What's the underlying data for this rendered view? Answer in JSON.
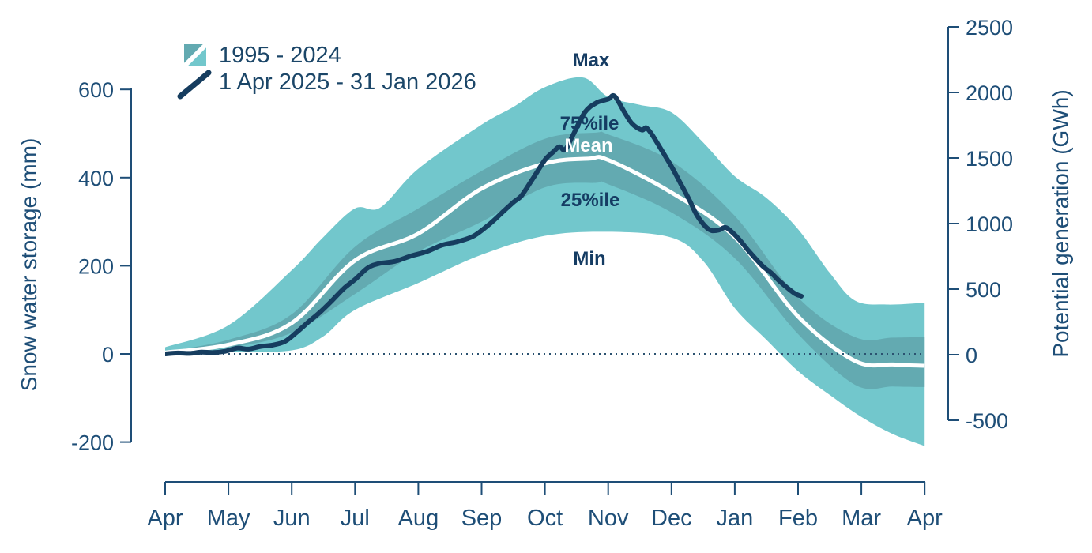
{
  "page": {
    "background": "#ffffff"
  },
  "figure": {
    "left_axis": {
      "title": "Snow water storage (mm)",
      "ticks": [
        600,
        400,
        200,
        0,
        -200
      ]
    },
    "right_axis": {
      "title": "Potential generation (GWh)",
      "ticks": [
        2500,
        2000,
        1500,
        1000,
        500,
        0,
        -500
      ]
    },
    "x_axis": {
      "months": [
        "Apr",
        "May",
        "Jun",
        "Jul",
        "Aug",
        "Sep",
        "Oct",
        "Nov",
        "Dec",
        "Jan",
        "Feb",
        "Mar",
        "Apr"
      ]
    }
  },
  "legend": {
    "band": {
      "label": "1995 - 2024"
    },
    "line": {
      "label": "1 Apr 2025 - 31 Jan 2026"
    }
  },
  "annotations": {
    "max": {
      "label": "Max"
    },
    "p75": {
      "label": "75%ile"
    },
    "mean": {
      "label": "Mean"
    },
    "p25": {
      "label": "25%ile"
    },
    "min": {
      "label": "Min"
    }
  },
  "colors": {
    "band_outer": "#72c7cc",
    "band_inner": "#63aab1",
    "mean_line": "#ffffff",
    "current_line": "#163d5f",
    "axis": "#1e4e77",
    "zero_dotted": "#2b5270"
  },
  "chart_data": {
    "type": "area+line",
    "title": "",
    "xlabel": "",
    "left_ylabel": "Snow water storage (mm)",
    "right_ylabel": "Potential generation (GWh)",
    "left_ylim": [
      -200,
      600
    ],
    "right_ylim": [
      -500,
      2500
    ],
    "grid": false,
    "legend_position": "top-left",
    "x_unit": "months since 1 Apr (0 = Apr, 12 = following Apr)",
    "y_unit": "mm snow water storage (right axis GWh is a linear rescale, ~3.37 GWh per mm)",
    "series": {
      "max": [
        [
          0,
          15
        ],
        [
          1,
          65
        ],
        [
          2,
          190
        ],
        [
          2.5,
          265
        ],
        [
          3,
          330
        ],
        [
          3.4,
          332
        ],
        [
          4,
          420
        ],
        [
          5,
          520
        ],
        [
          5.5,
          560
        ],
        [
          6,
          605
        ],
        [
          6.6,
          627
        ],
        [
          7,
          583
        ],
        [
          7.5,
          565
        ],
        [
          8,
          548
        ],
        [
          8.5,
          480
        ],
        [
          9,
          403
        ],
        [
          9.5,
          354
        ],
        [
          10,
          283
        ],
        [
          10.5,
          184
        ],
        [
          10.9,
          121
        ],
        [
          11.4,
          112
        ],
        [
          12,
          116
        ]
      ],
      "p75": [
        [
          0,
          5
        ],
        [
          1,
          32
        ],
        [
          2,
          90
        ],
        [
          3,
          243
        ],
        [
          4,
          330
        ],
        [
          5,
          415
        ],
        [
          6,
          488
        ],
        [
          6.8,
          502
        ],
        [
          7,
          498
        ],
        [
          8,
          437
        ],
        [
          9,
          313
        ],
        [
          10,
          128
        ],
        [
          10.9,
          38
        ],
        [
          11.5,
          37
        ],
        [
          12,
          39
        ]
      ],
      "mean": [
        [
          0,
          3
        ],
        [
          1,
          21
        ],
        [
          2,
          70
        ],
        [
          3,
          212
        ],
        [
          4,
          273
        ],
        [
          5,
          375
        ],
        [
          6,
          432
        ],
        [
          6.7,
          443
        ],
        [
          7,
          440
        ],
        [
          8,
          366
        ],
        [
          9,
          265
        ],
        [
          10,
          85
        ],
        [
          10.9,
          -16
        ],
        [
          11.5,
          -24
        ],
        [
          12,
          -27
        ]
      ],
      "p25": [
        [
          0,
          1
        ],
        [
          1,
          14
        ],
        [
          2,
          48
        ],
        [
          3,
          136
        ],
        [
          4,
          232
        ],
        [
          5,
          300
        ],
        [
          6,
          378
        ],
        [
          6.8,
          388
        ],
        [
          7,
          385
        ],
        [
          8,
          321
        ],
        [
          9,
          217
        ],
        [
          10,
          45
        ],
        [
          10.9,
          -70
        ],
        [
          11.5,
          -74
        ],
        [
          12,
          -75
        ]
      ],
      "min": [
        [
          0,
          0
        ],
        [
          1,
          5
        ],
        [
          2,
          8
        ],
        [
          2.5,
          40
        ],
        [
          3,
          100
        ],
        [
          4,
          161
        ],
        [
          5,
          225
        ],
        [
          6,
          268
        ],
        [
          7,
          277
        ],
        [
          8,
          264
        ],
        [
          8.5,
          211
        ],
        [
          9,
          104
        ],
        [
          9.5,
          32
        ],
        [
          10,
          -39
        ],
        [
          10.5,
          -93
        ],
        [
          11,
          -143
        ],
        [
          11.5,
          -182
        ],
        [
          12,
          -209
        ]
      ],
      "current": [
        [
          0.01,
          0
        ],
        [
          0.2,
          2
        ],
        [
          0.39,
          1
        ],
        [
          0.57,
          4
        ],
        [
          0.76,
          3
        ],
        [
          0.95,
          6
        ],
        [
          1.14,
          13
        ],
        [
          1.32,
          11
        ],
        [
          1.51,
          17
        ],
        [
          1.7,
          20
        ],
        [
          1.89,
          28
        ],
        [
          2.07,
          48
        ],
        [
          2.26,
          72
        ],
        [
          2.45,
          95
        ],
        [
          2.63,
          120
        ],
        [
          2.82,
          148
        ],
        [
          3.01,
          170
        ],
        [
          3.2,
          195
        ],
        [
          3.38,
          205
        ],
        [
          3.63,
          210
        ],
        [
          3.88,
          222
        ],
        [
          4.13,
          232
        ],
        [
          4.38,
          247
        ],
        [
          4.63,
          255
        ],
        [
          4.88,
          268
        ],
        [
          5.13,
          295
        ],
        [
          5.32,
          320
        ],
        [
          5.51,
          345
        ],
        [
          5.63,
          359
        ],
        [
          5.82,
          400
        ],
        [
          6.0,
          440
        ],
        [
          6.13,
          458
        ],
        [
          6.23,
          470
        ],
        [
          6.32,
          463
        ],
        [
          6.44,
          495
        ],
        [
          6.63,
          548
        ],
        [
          6.82,
          570
        ],
        [
          7.0,
          578
        ],
        [
          7.1,
          585
        ],
        [
          7.25,
          550
        ],
        [
          7.38,
          522
        ],
        [
          7.53,
          508
        ],
        [
          7.6,
          513
        ],
        [
          7.69,
          498
        ],
        [
          7.82,
          468
        ],
        [
          8.0,
          425
        ],
        [
          8.15,
          385
        ],
        [
          8.28,
          350
        ],
        [
          8.4,
          315
        ],
        [
          8.53,
          290
        ],
        [
          8.63,
          280
        ],
        [
          8.75,
          281
        ],
        [
          8.85,
          287
        ],
        [
          8.95,
          277
        ],
        [
          9.08,
          258
        ],
        [
          9.2,
          237
        ],
        [
          9.33,
          216
        ],
        [
          9.45,
          198
        ],
        [
          9.58,
          183
        ],
        [
          9.7,
          166
        ],
        [
          9.83,
          150
        ],
        [
          9.95,
          137
        ],
        [
          10.05,
          131
        ]
      ]
    }
  }
}
